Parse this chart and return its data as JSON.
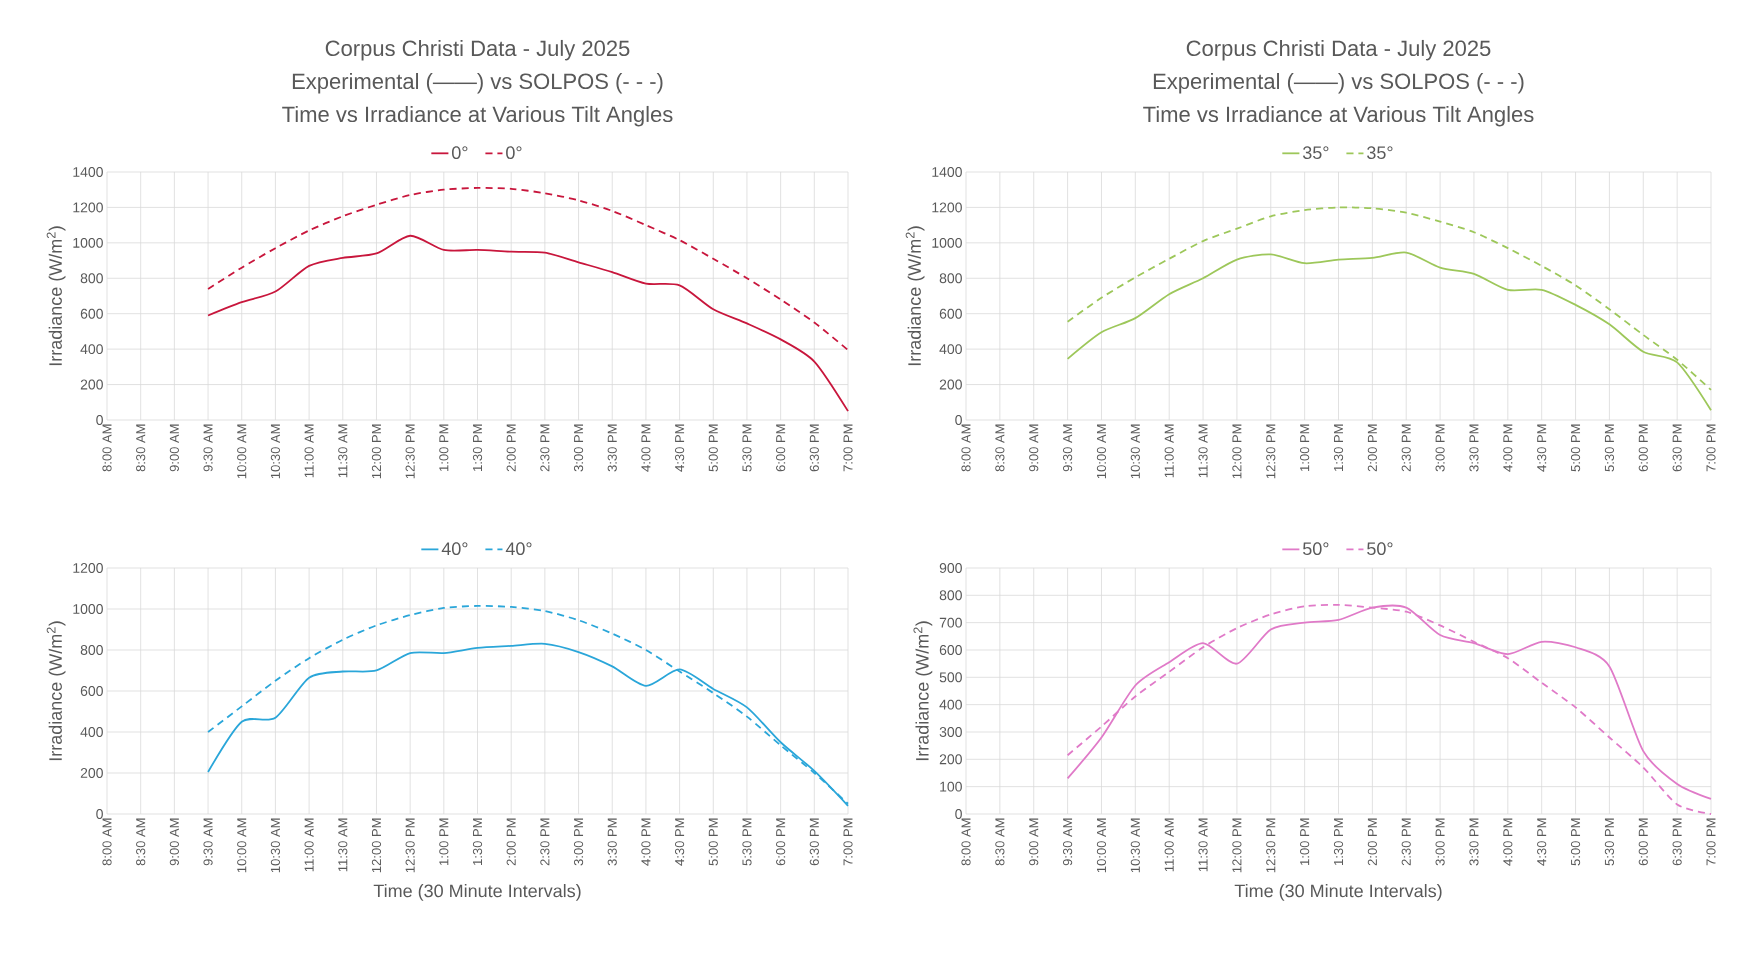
{
  "chart_data": [
    {
      "type": "line",
      "title": "Corpus Christi Data - July 2025",
      "subtitle": "Experimental (——) vs SOLPOS (- - -)",
      "annotations": [
        "Time vs Irradiance at Various Tilt Angles"
      ],
      "ylabel": "Irradiance (W/m$^{2}$)",
      "legend": "top",
      "grid": true,
      "categories": [
        "8:00 AM",
        "8:30 AM",
        "9:00 AM",
        "9:30 AM",
        "10:00 AM",
        "10:30 AM",
        "11:00 AM",
        "11:30 AM",
        "12:00 PM",
        "12:30 PM",
        "1:00 PM",
        "1:30 PM",
        "2:00 PM",
        "2:30 PM",
        "3:00 PM",
        "3:30 PM",
        "4:00 PM",
        "4:30 PM",
        "5:00 PM",
        "5:30 PM",
        "6:00 PM",
        "6:30 PM",
        "7:00 PM"
      ],
      "ylim": [
        0,
        1400
      ],
      "yticks": [
        0,
        200,
        400,
        600,
        800,
        1000,
        1200,
        1400
      ],
      "series": [
        {
          "name": "0°",
          "color": "#c8163c",
          "line_style": "solid",
          "values": [
            null,
            null,
            null,
            590,
            665,
            725,
            870,
            915,
            940,
            1040,
            960,
            960,
            950,
            945,
            890,
            835,
            770,
            760,
            625,
            545,
            455,
            330,
            50
          ]
        },
        {
          "name": "0°",
          "color": "#c8163c",
          "line_style": "dashed",
          "values": [
            null,
            null,
            null,
            740,
            860,
            970,
            1070,
            1150,
            1215,
            1270,
            1300,
            1310,
            1305,
            1280,
            1240,
            1180,
            1100,
            1015,
            910,
            800,
            680,
            550,
            395
          ]
        }
      ]
    },
    {
      "type": "line",
      "title": "Corpus Christi Data - July 2025",
      "subtitle": "Experimental (——) vs SOLPOS (- - -)",
      "annotations": [
        "Time vs Irradiance at Various Tilt Angles"
      ],
      "ylabel": "Irradiance (W/m$^{2}$)",
      "legend": "top",
      "grid": true,
      "categories": [
        "8:00 AM",
        "8:30 AM",
        "9:00 AM",
        "9:30 AM",
        "10:00 AM",
        "10:30 AM",
        "11:00 AM",
        "11:30 AM",
        "12:00 PM",
        "12:30 PM",
        "1:00 PM",
        "1:30 PM",
        "2:00 PM",
        "2:30 PM",
        "3:00 PM",
        "3:30 PM",
        "4:00 PM",
        "4:30 PM",
        "5:00 PM",
        "5:30 PM",
        "6:00 PM",
        "6:30 PM",
        "7:00 PM"
      ],
      "ylim": [
        0,
        1400
      ],
      "yticks": [
        0,
        200,
        400,
        600,
        800,
        1000,
        1200,
        1400
      ],
      "series": [
        {
          "name": "35°",
          "color": "#9dc75a",
          "line_style": "solid",
          "values": [
            null,
            null,
            null,
            345,
            495,
            575,
            710,
            800,
            905,
            935,
            885,
            905,
            915,
            945,
            860,
            825,
            735,
            735,
            650,
            540,
            385,
            325,
            55
          ]
        },
        {
          "name": "35°",
          "color": "#9dc75a",
          "line_style": "dashed",
          "values": [
            null,
            null,
            null,
            555,
            690,
            805,
            910,
            1010,
            1080,
            1150,
            1185,
            1200,
            1195,
            1170,
            1120,
            1060,
            970,
            870,
            760,
            625,
            480,
            340,
            170
          ]
        }
      ]
    },
    {
      "type": "line",
      "xlabel": "Time (30 Minute Intervals)",
      "ylabel": "Irradiance (W/m$^{2}$)",
      "legend": "top",
      "grid": true,
      "categories": [
        "8:00 AM",
        "8:30 AM",
        "9:00 AM",
        "9:30 AM",
        "10:00 AM",
        "10:30 AM",
        "11:00 AM",
        "11:30 AM",
        "12:00 PM",
        "12:30 PM",
        "1:00 PM",
        "1:30 PM",
        "2:00 PM",
        "2:30 PM",
        "3:00 PM",
        "3:30 PM",
        "4:00 PM",
        "4:30 PM",
        "5:00 PM",
        "5:30 PM",
        "6:00 PM",
        "6:30 PM",
        "7:00 PM"
      ],
      "ylim": [
        0,
        1200
      ],
      "yticks": [
        0,
        200,
        400,
        600,
        800,
        1000,
        1200
      ],
      "series": [
        {
          "name": "40°",
          "color": "#2aa6d9",
          "line_style": "solid",
          "values": [
            null,
            null,
            null,
            205,
            450,
            470,
            665,
            695,
            700,
            785,
            785,
            810,
            820,
            830,
            790,
            720,
            625,
            705,
            610,
            520,
            350,
            210,
            40
          ]
        },
        {
          "name": "40°",
          "color": "#2aa6d9",
          "line_style": "dashed",
          "values": [
            null,
            null,
            null,
            400,
            525,
            650,
            760,
            850,
            920,
            970,
            1005,
            1015,
            1010,
            990,
            945,
            880,
            800,
            695,
            590,
            475,
            335,
            200,
            50
          ]
        }
      ]
    },
    {
      "type": "line",
      "xlabel": "Time (30 Minute Intervals)",
      "ylabel": "Irradiance (W/m$^{2}$)",
      "legend": "top",
      "grid": true,
      "categories": [
        "8:00 AM",
        "8:30 AM",
        "9:00 AM",
        "9:30 AM",
        "10:00 AM",
        "10:30 AM",
        "11:00 AM",
        "11:30 AM",
        "12:00 PM",
        "12:30 PM",
        "1:00 PM",
        "1:30 PM",
        "2:00 PM",
        "2:30 PM",
        "3:00 PM",
        "3:30 PM",
        "4:00 PM",
        "4:30 PM",
        "5:00 PM",
        "5:30 PM",
        "6:00 PM",
        "6:30 PM",
        "7:00 PM"
      ],
      "ylim": [
        0,
        900
      ],
      "yticks": [
        0,
        100,
        200,
        300,
        400,
        500,
        600,
        700,
        800,
        900
      ],
      "series": [
        {
          "name": "50°",
          "color": "#e07ac8",
          "line_style": "solid",
          "values": [
            null,
            null,
            null,
            130,
            280,
            470,
            555,
            625,
            550,
            675,
            700,
            710,
            755,
            755,
            655,
            625,
            585,
            630,
            610,
            540,
            230,
            110,
            55
          ]
        },
        {
          "name": "50°",
          "color": "#e07ac8",
          "line_style": "dashed",
          "values": [
            null,
            null,
            null,
            215,
            320,
            430,
            520,
            610,
            680,
            730,
            760,
            765,
            755,
            740,
            690,
            630,
            570,
            480,
            390,
            280,
            170,
            35,
            0
          ]
        }
      ]
    }
  ]
}
